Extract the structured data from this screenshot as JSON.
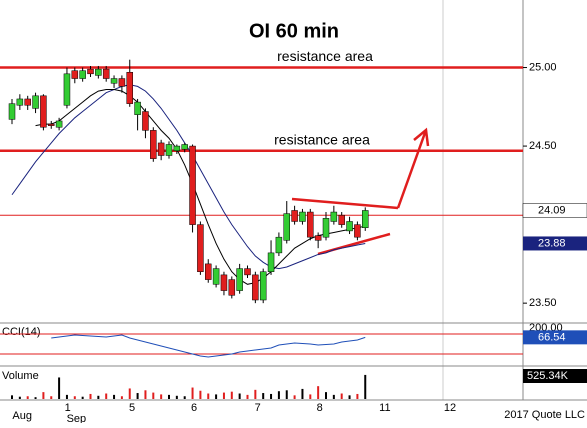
{
  "chart_data": [
    {
      "type": "candlestick",
      "title": "OI 60 min",
      "open": [
        24.67,
        24.76,
        24.8,
        24.74,
        24.82,
        24.64,
        24.62,
        24.76,
        24.98,
        24.93,
        24.99,
        24.95,
        24.99,
        24.9,
        24.93,
        24.97,
        24.7,
        24.72,
        24.6,
        24.52,
        24.44,
        24.47,
        24.48,
        24.5,
        24.0,
        23.75,
        23.62,
        23.68,
        23.65,
        23.58,
        23.72,
        23.68,
        23.52,
        23.7,
        23.82,
        23.9,
        24.09,
        24.02,
        24.08,
        23.93,
        23.92,
        24.02,
        24.06,
        23.96,
        24.0,
        23.98
      ],
      "high": [
        24.8,
        24.83,
        24.82,
        24.84,
        24.83,
        24.66,
        24.68,
        25.0,
        25.0,
        25.0,
        25.01,
        25.01,
        25.01,
        24.95,
        24.95,
        25.05,
        24.8,
        24.74,
        24.62,
        24.54,
        24.53,
        24.51,
        24.52,
        24.51,
        24.02,
        23.78,
        23.74,
        23.7,
        23.67,
        23.75,
        23.74,
        23.7,
        23.72,
        23.9,
        23.95,
        24.15,
        24.12,
        24.1,
        24.1,
        23.95,
        24.08,
        24.12,
        24.08,
        24.05,
        24.02,
        24.11
      ],
      "low": [
        24.64,
        24.73,
        24.73,
        24.71,
        24.6,
        24.61,
        24.6,
        24.74,
        24.9,
        24.91,
        24.94,
        24.93,
        24.91,
        24.87,
        24.84,
        24.75,
        24.6,
        24.55,
        24.4,
        24.41,
        24.42,
        24.45,
        24.46,
        23.95,
        23.68,
        23.63,
        23.6,
        23.55,
        23.53,
        23.56,
        23.66,
        23.5,
        23.5,
        23.68,
        23.8,
        23.88,
        24.0,
        24.0,
        23.9,
        23.85,
        23.9,
        24.0,
        23.98,
        23.94,
        23.9,
        23.96
      ],
      "close": [
        24.77,
        24.8,
        24.76,
        24.82,
        24.62,
        24.63,
        24.66,
        24.96,
        24.93,
        24.98,
        24.96,
        24.99,
        24.93,
        24.93,
        24.88,
        24.77,
        24.78,
        24.6,
        24.42,
        24.44,
        24.51,
        24.5,
        24.51,
        24.0,
        23.7,
        23.65,
        23.72,
        23.58,
        23.55,
        23.72,
        23.68,
        23.52,
        23.7,
        23.82,
        23.92,
        24.07,
        24.02,
        24.08,
        23.92,
        23.9,
        24.04,
        24.08,
        24.0,
        24.02,
        23.92,
        24.09
      ],
      "up_color": "#33cc33",
      "down_color": "#e01e1e",
      "series": [
        {
          "color": "#1a237e",
          "values": [
            24.19,
            24.26,
            24.33,
            24.4,
            24.46,
            24.52,
            24.58,
            24.63,
            24.68,
            24.72,
            24.76,
            24.8,
            24.84,
            24.86,
            24.88,
            24.89,
            24.88,
            24.85,
            24.8,
            24.74,
            24.67,
            24.6,
            24.52,
            24.44,
            24.35,
            24.26,
            24.17,
            24.08,
            24.0,
            23.93,
            23.86,
            23.8,
            23.76,
            23.73,
            23.72,
            23.73,
            23.75,
            23.77,
            23.79,
            23.81,
            23.82,
            23.84,
            23.85,
            23.86,
            23.87,
            23.88
          ]
        },
        {
          "color": "#000000",
          "values": [
            null,
            null,
            null,
            24.63,
            24.64,
            24.64,
            24.66,
            24.7,
            24.74,
            24.78,
            24.82,
            24.85,
            24.86,
            24.86,
            24.85,
            24.82,
            24.78,
            24.72,
            24.66,
            24.6,
            24.55,
            24.48,
            24.38,
            24.26,
            24.13,
            24.0,
            23.88,
            23.78,
            23.7,
            23.65,
            23.62,
            23.63,
            23.66,
            23.7,
            23.75,
            23.8,
            23.85,
            23.88,
            23.91,
            23.93,
            23.94,
            23.95,
            23.96,
            23.97,
            23.98,
            23.99
          ]
        }
      ],
      "hlines": [
        {
          "value": 25.0,
          "label": "resistance area",
          "color": "#e01e1e"
        },
        {
          "value": 24.47,
          "label": "resistance area",
          "color": "#e01e1e"
        },
        {
          "value": 24.06,
          "color": "#e01e1e"
        }
      ],
      "ylim": [
        23.38,
        25.43
      ],
      "yticks": [
        {
          "value": 25.0,
          "label": "25.00"
        },
        {
          "value": 24.5,
          "label": "24.50"
        },
        {
          "value": 23.5,
          "label": "23.50"
        }
      ],
      "xticks": [
        {
          "value": 7.1,
          "label": "1"
        },
        {
          "value": 15.3,
          "label": "5"
        },
        {
          "value": 23.2,
          "label": "6"
        },
        {
          "value": 31.3,
          "label": "7"
        },
        {
          "value": 39.2,
          "label": "8"
        },
        {
          "value": 47.5,
          "label": "11"
        },
        {
          "value": 55.8,
          "label": "12"
        }
      ],
      "month_labels": [
        {
          "value": 1.3,
          "label": "Aug"
        },
        {
          "value": 8.2,
          "label": "Sep"
        }
      ],
      "copyright": "2017 Quote LLC"
    },
    {
      "type": "line",
      "name": "CCI(14)",
      "color": "#1f4fb8",
      "values": [
        null,
        null,
        null,
        null,
        null,
        60,
        70,
        80,
        90,
        85,
        80,
        75,
        70,
        80,
        90,
        60,
        40,
        20,
        0,
        -20,
        -40,
        -60,
        -80,
        -100,
        -120,
        -130,
        -120,
        -110,
        -100,
        -80,
        -70,
        -60,
        -50,
        -40,
        -10,
        0,
        10,
        5,
        0,
        -10,
        -5,
        0,
        20,
        30,
        40,
        66.54
      ],
      "levels": [
        100,
        -100
      ],
      "ylim": [
        -200,
        200
      ],
      "yticks": [
        {
          "value": 200,
          "label": "200.00"
        }
      ]
    },
    {
      "type": "bar",
      "name": "Volume",
      "values": [
        80000,
        50000,
        60000,
        40000,
        150000,
        60000,
        470000,
        90000,
        60000,
        50000,
        110000,
        70000,
        120000,
        90000,
        60000,
        230000,
        130000,
        190000,
        140000,
        100000,
        90000,
        70000,
        60000,
        250000,
        180000,
        120000,
        100000,
        140000,
        160000,
        120000,
        90000,
        200000,
        130000,
        110000,
        170000,
        190000,
        80000,
        220000,
        100000,
        280000,
        150000,
        90000,
        120000,
        80000,
        110000,
        525340
      ],
      "last_label": "525.34K",
      "up_color": "#000000",
      "down_color": "#e01e1e",
      "ylim": [
        0,
        720000
      ]
    }
  ]
}
